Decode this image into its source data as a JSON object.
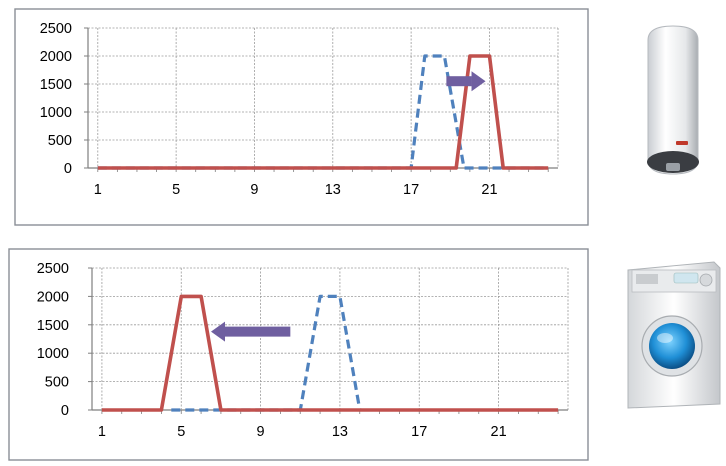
{
  "chart_data": [
    {
      "type": "line",
      "title": "",
      "xlabel": "",
      "ylabel": "",
      "x": [
        1,
        2,
        3,
        4,
        5,
        6,
        7,
        8,
        9,
        10,
        11,
        12,
        13,
        14,
        15,
        16,
        17,
        18,
        19,
        20,
        21,
        22,
        23,
        24
      ],
      "x_tick_labels": [
        "1",
        "5",
        "9",
        "13",
        "17",
        "21"
      ],
      "x_ticks": [
        1,
        5,
        9,
        13,
        17,
        21
      ],
      "y_tick_labels": [
        "0",
        "500",
        "1000",
        "1500",
        "2000",
        "2500"
      ],
      "y_ticks": [
        0,
        500,
        1000,
        1500,
        2000,
        2500
      ],
      "ylim": [
        0,
        2500
      ],
      "xlim": [
        0.5,
        24.5
      ],
      "grid": true,
      "series": [
        {
          "style": "dashed",
          "color": "#4f81bd",
          "points": [
            [
              1,
              0
            ],
            [
              17,
              0
            ],
            [
              17.7,
              2000
            ],
            [
              18.7,
              2000
            ],
            [
              19.7,
              0
            ],
            [
              24,
              0
            ]
          ]
        },
        {
          "style": "solid",
          "color": "#c0504d",
          "points": [
            [
              1,
              0
            ],
            [
              19.3,
              0
            ],
            [
              20,
              2000
            ],
            [
              21,
              2000
            ],
            [
              21.7,
              0
            ],
            [
              24,
              0
            ]
          ]
        }
      ],
      "annotation": {
        "type": "arrow",
        "direction": "right",
        "color": "#6f5fa0",
        "from": [
          18.8,
          1550
        ],
        "to": [
          20.8,
          1550
        ]
      }
    },
    {
      "type": "line",
      "title": "",
      "xlabel": "",
      "ylabel": "",
      "x": [
        1,
        2,
        3,
        4,
        5,
        6,
        7,
        8,
        9,
        10,
        11,
        12,
        13,
        14,
        15,
        16,
        17,
        18,
        19,
        20,
        21,
        22,
        23,
        24
      ],
      "x_tick_labels": [
        "1",
        "5",
        "9",
        "13",
        "17",
        "21"
      ],
      "x_ticks": [
        1,
        5,
        9,
        13,
        17,
        21
      ],
      "y_tick_labels": [
        "0",
        "500",
        "1000",
        "1500",
        "2000",
        "2500"
      ],
      "y_ticks": [
        0,
        500,
        1000,
        1500,
        2000,
        2500
      ],
      "ylim": [
        0,
        2500
      ],
      "xlim": [
        0.5,
        24.5
      ],
      "grid": true,
      "series": [
        {
          "style": "dashed",
          "color": "#4f81bd",
          "points": [
            [
              4.5,
              0
            ],
            [
              6.5,
              0
            ],
            [
              11,
              0
            ],
            [
              12,
              2000
            ],
            [
              13,
              2000
            ],
            [
              14,
              0
            ]
          ]
        },
        {
          "style": "solid",
          "color": "#c0504d",
          "points": [
            [
              1,
              0
            ],
            [
              4,
              0
            ],
            [
              5,
              2000
            ],
            [
              6,
              2000
            ],
            [
              7,
              0
            ],
            [
              24,
              0
            ]
          ]
        }
      ],
      "annotation": {
        "type": "arrow",
        "direction": "left",
        "color": "#6f5fa0",
        "from": [
          10.5,
          1380
        ],
        "to": [
          6.5,
          1380
        ]
      }
    }
  ],
  "appliances": [
    {
      "icon": "water-heater-icon"
    },
    {
      "icon": "washing-machine-icon"
    }
  ]
}
